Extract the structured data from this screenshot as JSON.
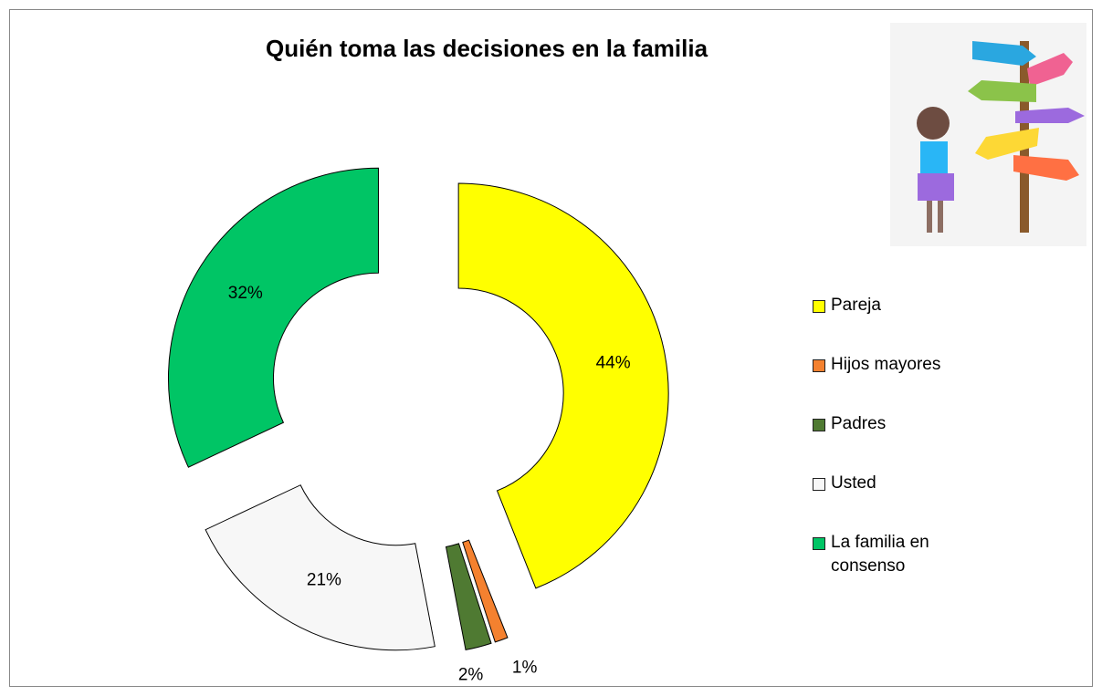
{
  "chart_data": {
    "type": "donut",
    "title": "Quién toma las decisiones en la familia",
    "categories": [
      "Pareja",
      "Hijos mayores",
      "Padres",
      "Usted",
      "La familia en consenso"
    ],
    "values": [
      44,
      1,
      2,
      21,
      32
    ],
    "value_labels": [
      "44%",
      "1%",
      "2%",
      "21%",
      "32%"
    ],
    "colors": [
      "#ffff00",
      "#f4812f",
      "#4f7a32",
      "#f7f7f7",
      "#00c565"
    ],
    "legend": "right"
  }
}
